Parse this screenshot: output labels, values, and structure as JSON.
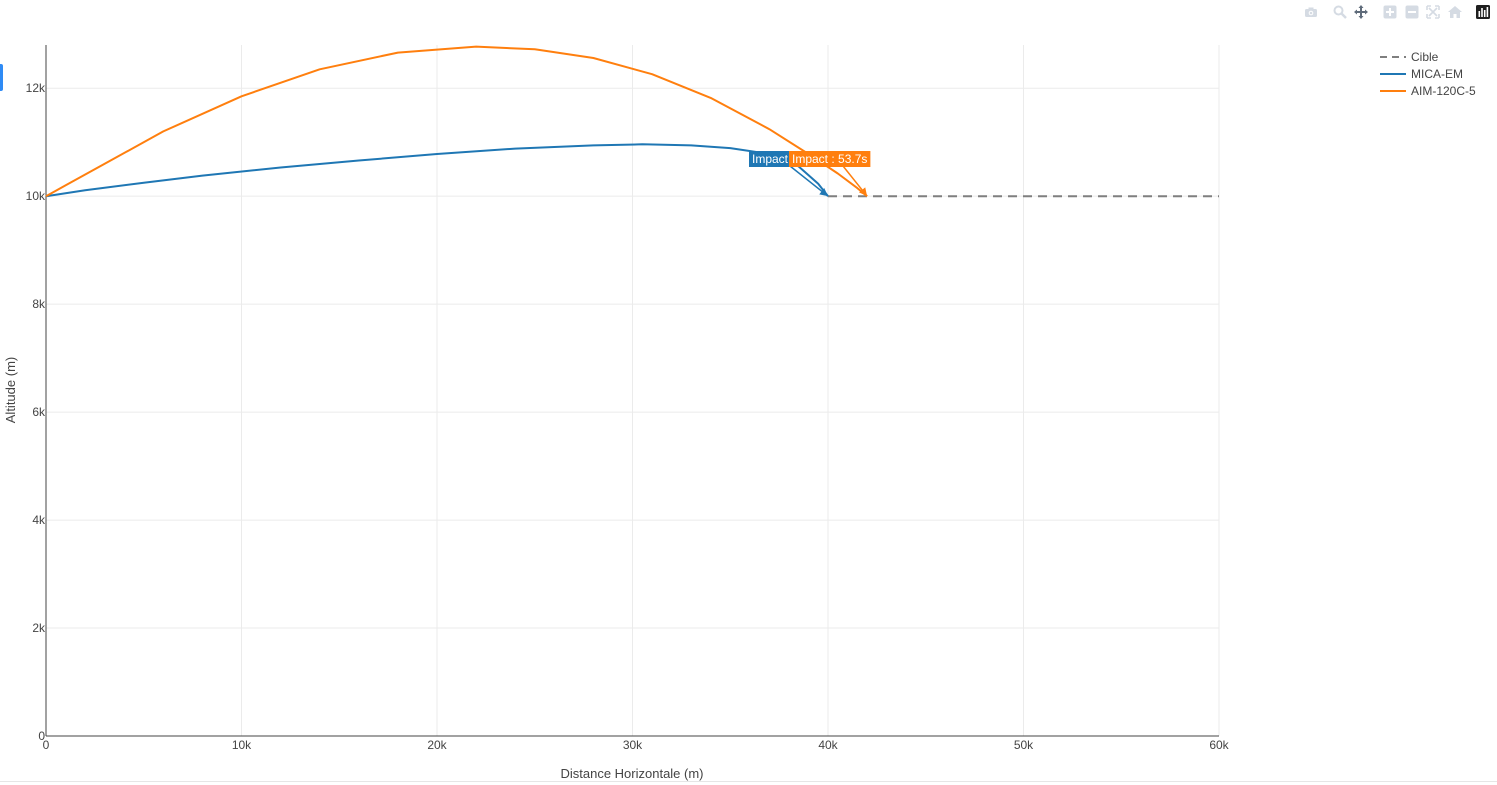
{
  "modebar": {
    "items": [
      "camera-icon",
      "zoom-icon",
      "pan-icon",
      "zoom-in-icon",
      "zoom-out-icon",
      "autoscale-icon",
      "reset-axes-icon",
      "plotly-logo-icon"
    ]
  },
  "chart_data": {
    "type": "line",
    "title": "",
    "xlabel": "Distance Horizontale (m)",
    "ylabel": "Altitude (m)",
    "xlim": [
      0,
      60000
    ],
    "ylim": [
      0,
      12800
    ],
    "x_ticks": [
      0,
      10000,
      20000,
      30000,
      40000,
      50000,
      60000
    ],
    "x_tick_labels": [
      "0",
      "10k",
      "20k",
      "30k",
      "40k",
      "50k",
      "60k"
    ],
    "y_ticks": [
      0,
      2000,
      4000,
      6000,
      8000,
      10000,
      12000
    ],
    "y_tick_labels": [
      "0",
      "2k",
      "4k",
      "6k",
      "8k",
      "10k",
      "12k"
    ],
    "grid": true,
    "legend_position": "top-right",
    "series": [
      {
        "name": "Cible",
        "color": "#7f7f7f",
        "dash": "dash",
        "x": [
          40000,
          60000
        ],
        "y": [
          10000,
          10000
        ]
      },
      {
        "name": "MICA-EM",
        "color": "#1f77b4",
        "dash": "solid",
        "x": [
          0,
          2000,
          5000,
          8000,
          12000,
          16000,
          20000,
          24000,
          28000,
          30500,
          33000,
          35000,
          37000,
          38500,
          39500,
          40000
        ],
        "y": [
          10000,
          10110,
          10250,
          10380,
          10530,
          10660,
          10780,
          10880,
          10940,
          10960,
          10940,
          10890,
          10780,
          10550,
          10230,
          10000
        ]
      },
      {
        "name": "AIM-120C-5",
        "color": "#ff7f0e",
        "dash": "solid",
        "x": [
          0,
          1000,
          3000,
          6000,
          10000,
          14000,
          18000,
          22000,
          25000,
          28000,
          31000,
          34000,
          37000,
          39000,
          40500,
          41500,
          42000
        ],
        "y": [
          10000,
          10200,
          10600,
          11200,
          11850,
          12350,
          12660,
          12770,
          12720,
          12560,
          12260,
          11820,
          11240,
          10780,
          10420,
          10150,
          10000
        ]
      }
    ],
    "annotations": [
      {
        "text": "Impact",
        "series": "MICA-EM",
        "x": 40000,
        "y": 10000,
        "color": "#1f77b4"
      },
      {
        "text": "Impact : 53.7s",
        "series": "AIM-120C-5",
        "x": 42000,
        "y": 10000,
        "color": "#ff7f0e"
      }
    ]
  }
}
